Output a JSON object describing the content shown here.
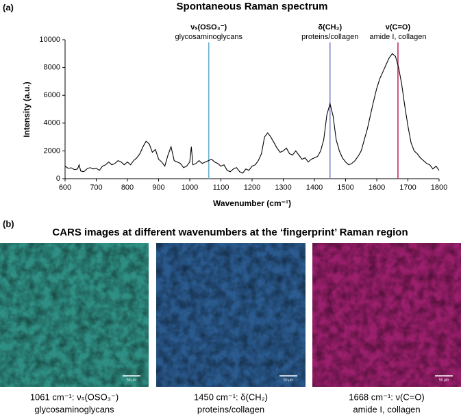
{
  "panel_labels": [
    "(a)",
    "(b)"
  ],
  "chart_data": {
    "type": "line",
    "title": "Spontaneous Raman spectrum",
    "x_label": "Wavenumber (cm⁻¹)",
    "y_label": "Intensity (a.u.)",
    "xlim": [
      600,
      1800
    ],
    "xticks": [
      600,
      700,
      800,
      900,
      1000,
      1100,
      1200,
      1300,
      1400,
      1500,
      1600,
      1700,
      1800
    ],
    "ylim": [
      0,
      10000
    ],
    "yticks": [
      0,
      2000,
      4000,
      6000,
      8000,
      10000
    ],
    "color": "#000000",
    "x": [
      600,
      610,
      620,
      630,
      640,
      645,
      650,
      660,
      670,
      680,
      690,
      700,
      710,
      720,
      730,
      740,
      750,
      760,
      770,
      780,
      790,
      800,
      810,
      820,
      830,
      840,
      850,
      860,
      870,
      880,
      890,
      900,
      910,
      920,
      930,
      940,
      950,
      960,
      970,
      980,
      990,
      1000,
      1005,
      1010,
      1020,
      1030,
      1040,
      1050,
      1060,
      1070,
      1080,
      1090,
      1100,
      1110,
      1120,
      1130,
      1140,
      1150,
      1160,
      1170,
      1180,
      1190,
      1200,
      1210,
      1220,
      1230,
      1240,
      1250,
      1260,
      1270,
      1280,
      1290,
      1300,
      1310,
      1320,
      1330,
      1340,
      1350,
      1360,
      1370,
      1380,
      1390,
      1400,
      1410,
      1420,
      1430,
      1440,
      1450,
      1460,
      1470,
      1480,
      1490,
      1500,
      1510,
      1520,
      1530,
      1540,
      1550,
      1560,
      1570,
      1580,
      1590,
      1600,
      1610,
      1620,
      1630,
      1640,
      1650,
      1660,
      1670,
      1680,
      1690,
      1700,
      1710,
      1720,
      1730,
      1740,
      1750,
      1760,
      1770,
      1780,
      1790,
      1800
    ],
    "values": [
      900,
      750,
      780,
      650,
      700,
      1000,
      550,
      500,
      700,
      800,
      700,
      750,
      600,
      900,
      1000,
      1200,
      1000,
      1100,
      1300,
      1200,
      1000,
      1200,
      1000,
      1300,
      1500,
      1800,
      2300,
      2700,
      2500,
      1900,
      2100,
      1400,
      1200,
      900,
      1700,
      2300,
      1300,
      1200,
      1100,
      800,
      900,
      1200,
      2300,
      1000,
      1100,
      1300,
      1100,
      1200,
      1300,
      1400,
      1200,
      1100,
      900,
      1000,
      600,
      500,
      700,
      800,
      500,
      400,
      700,
      600,
      900,
      1000,
      1300,
      1800,
      3000,
      3300,
      3000,
      2600,
      2200,
      1900,
      2000,
      2200,
      1800,
      1700,
      2000,
      1700,
      1400,
      1500,
      1200,
      1400,
      1500,
      1600,
      2000,
      2800,
      4600,
      5400,
      4500,
      2800,
      2000,
      1500,
      1200,
      1000,
      1100,
      1300,
      1600,
      2000,
      2800,
      3600,
      4600,
      5600,
      6500,
      7200,
      7700,
      8200,
      8700,
      9000,
      8800,
      8000,
      6800,
      5200,
      3800,
      2600,
      2000,
      1800,
      1500,
      1300,
      1100,
      1000,
      700,
      900,
      600
    ],
    "annotations": [
      {
        "x": 1061,
        "color": "#6fb0cf",
        "label": "νₛ(OSO₃⁻)",
        "sublabel": "glycosaminoglycans"
      },
      {
        "x": 1450,
        "color": "#7f86c8",
        "label": "δ(CH₂)",
        "sublabel": "proteins/collagen"
      },
      {
        "x": 1668,
        "color": "#c4305e",
        "label": "ν(C=O)",
        "sublabel": "amide I, collagen"
      }
    ]
  },
  "images_title": "CARS images at different wavenumbers at the ‘fingerprint’ Raman region",
  "images": [
    {
      "color": "#2f8f84",
      "scale_bar": "50 µm",
      "caption": "1061 cm⁻¹: νₛ(OSO₃⁻)",
      "subcaption": "glycosaminoglycans"
    },
    {
      "color": "#2a5a8e",
      "scale_bar": "50 µm",
      "caption": "1450 cm⁻¹: δ(CH₂)",
      "subcaption": "proteins/collagen"
    },
    {
      "color": "#9a1f6c",
      "scale_bar": "50 µm",
      "caption": "1668 cm⁻¹: ν(C=O)",
      "subcaption": "amide I, collagen"
    }
  ]
}
